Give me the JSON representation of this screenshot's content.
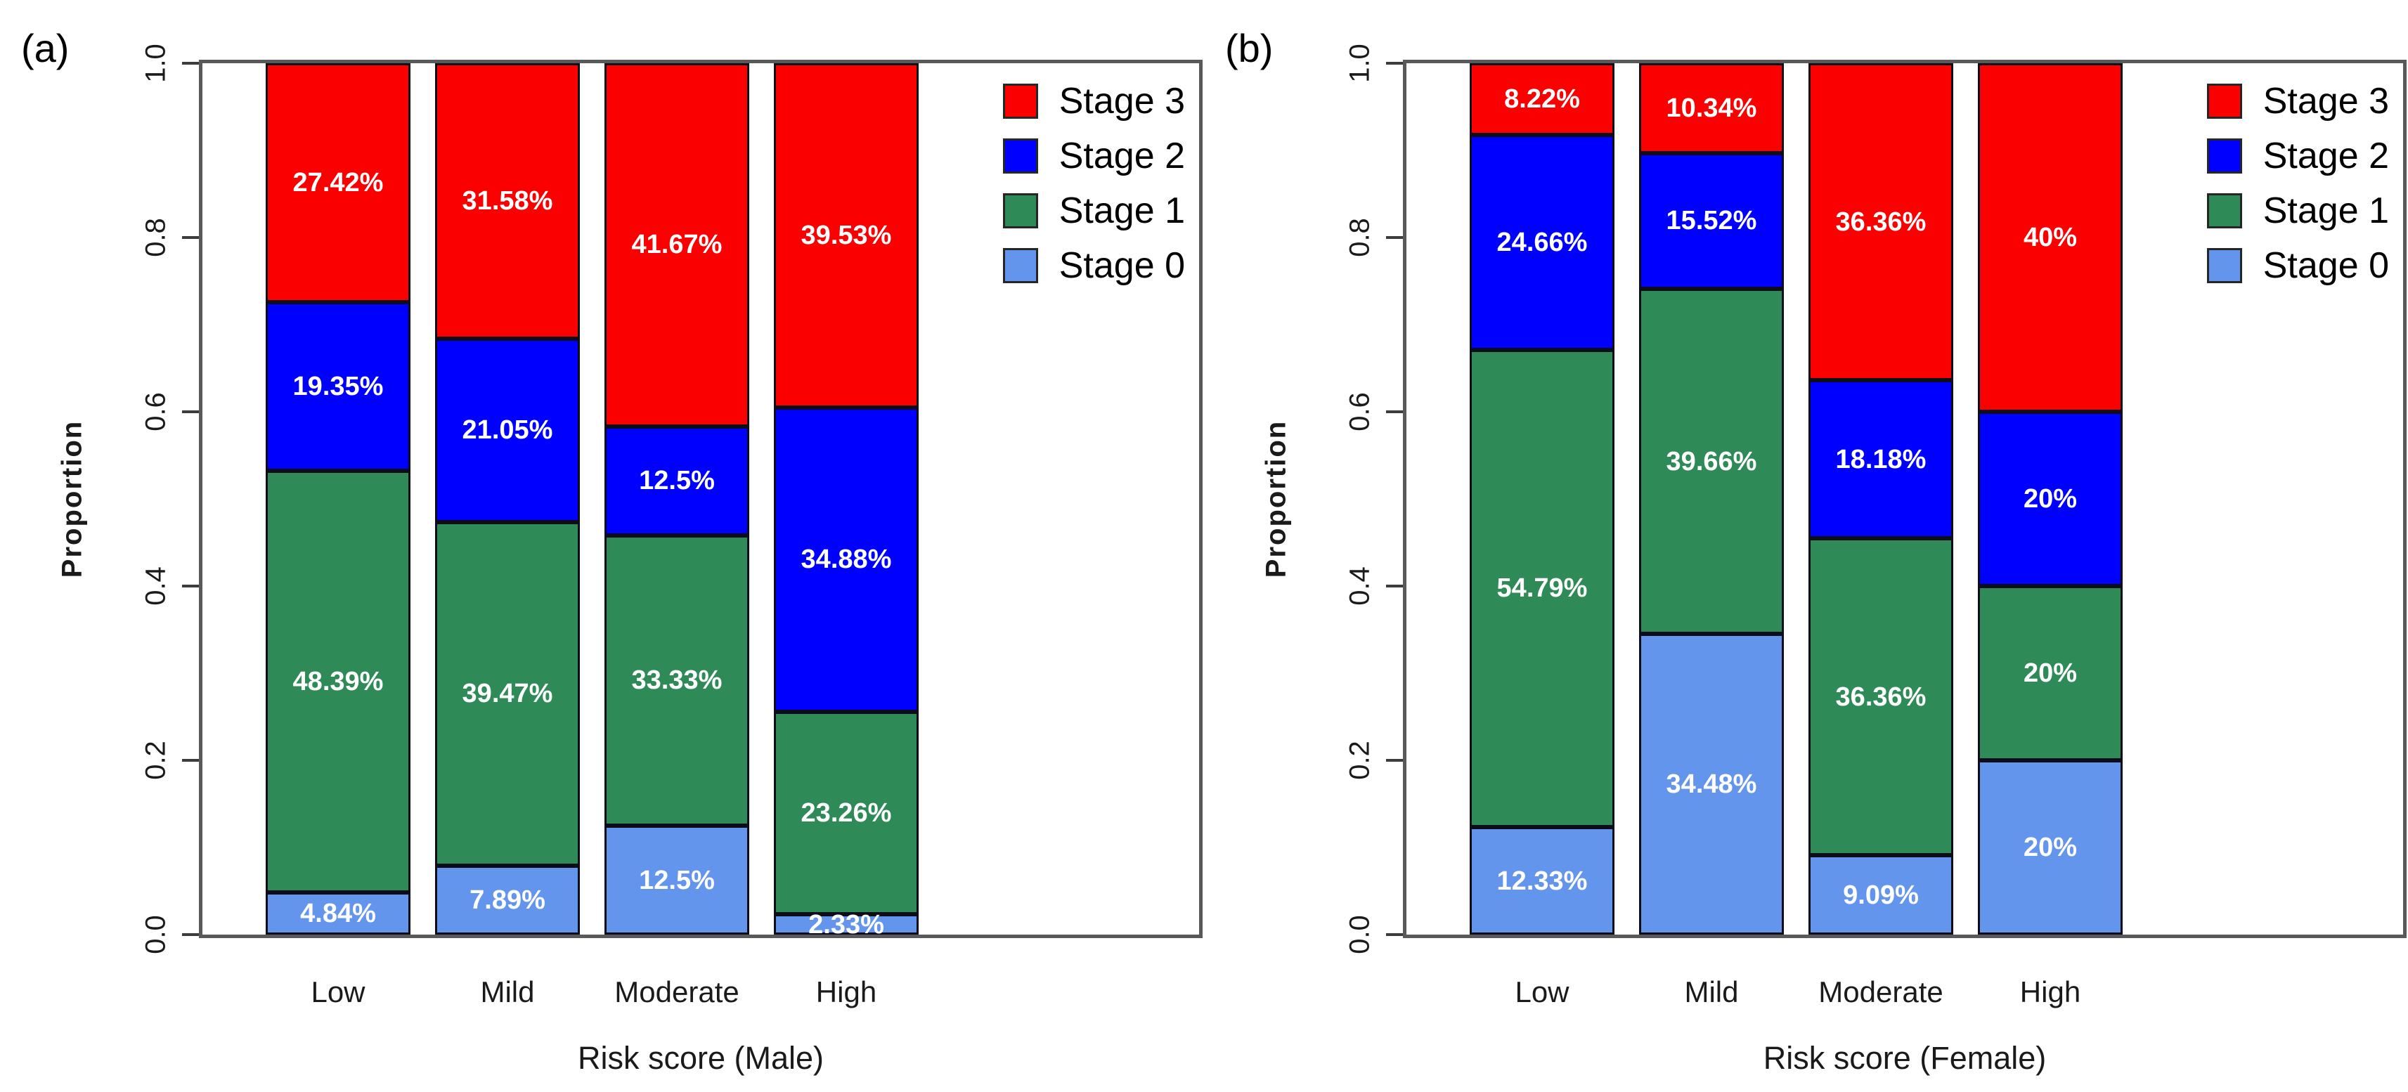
{
  "figure_background": "#ffffff",
  "colors": {
    "stage3_red": "#FB0000",
    "stage2_blue": "#0000FF",
    "stage1_green": "#2E8B57",
    "stage0_lightblue": "#6495ED",
    "plot_box_border": "#595959",
    "bar_border": "#0d0d1a",
    "segment_label_text": "#ffffff"
  },
  "chart_data": [
    {
      "type": "bar",
      "stacked": true,
      "panel_tag": "(a)",
      "xlabel": "Risk score (Male)",
      "ylabel": "Proportion",
      "categories": [
        "Low",
        "Mild",
        "Moderate",
        "High"
      ],
      "ylim": [
        0,
        1
      ],
      "ytick_labels": [
        "0.0",
        "0.2",
        "0.4",
        "0.6",
        "0.8",
        "1.0"
      ],
      "grid": false,
      "legend_position": "top-right-inside",
      "legend_order": [
        "Stage 3",
        "Stage 2",
        "Stage 1",
        "Stage 0"
      ],
      "series": [
        {
          "name": "Stage 0",
          "color": "#6495ED",
          "values": [
            4.84,
            7.89,
            12.5,
            2.33
          ],
          "labels": [
            "4.84%",
            "7.89%",
            "12.5%",
            "2.33%"
          ]
        },
        {
          "name": "Stage 1",
          "color": "#2E8B57",
          "values": [
            48.39,
            39.47,
            33.33,
            23.26
          ],
          "labels": [
            "48.39%",
            "39.47%",
            "33.33%",
            "23.26%"
          ]
        },
        {
          "name": "Stage 2",
          "color": "#0000FF",
          "values": [
            19.35,
            21.05,
            12.5,
            34.88
          ],
          "labels": [
            "19.35%",
            "21.05%",
            "12.5%",
            "34.88%"
          ]
        },
        {
          "name": "Stage 3",
          "color": "#FB0000",
          "values": [
            27.42,
            31.58,
            41.67,
            39.53
          ],
          "labels": [
            "27.42%",
            "31.58%",
            "41.67%",
            "39.53%"
          ]
        }
      ]
    },
    {
      "type": "bar",
      "stacked": true,
      "panel_tag": "(b)",
      "xlabel": "Risk score (Female)",
      "ylabel": "Proportion",
      "categories": [
        "Low",
        "Mild",
        "Moderate",
        "High"
      ],
      "ylim": [
        0,
        1
      ],
      "ytick_labels": [
        "0.0",
        "0.2",
        "0.4",
        "0.6",
        "0.8",
        "1.0"
      ],
      "grid": false,
      "legend_position": "top-right-inside",
      "legend_order": [
        "Stage 3",
        "Stage 2",
        "Stage 1",
        "Stage 0"
      ],
      "series": [
        {
          "name": "Stage 0",
          "color": "#6495ED",
          "values": [
            12.33,
            34.48,
            9.09,
            20
          ],
          "labels": [
            "12.33%",
            "34.48%",
            "9.09%",
            "20%"
          ]
        },
        {
          "name": "Stage 1",
          "color": "#2E8B57",
          "values": [
            54.79,
            39.66,
            36.36,
            20
          ],
          "labels": [
            "54.79%",
            "39.66%",
            "36.36%",
            "20%"
          ]
        },
        {
          "name": "Stage 2",
          "color": "#0000FF",
          "values": [
            24.66,
            15.52,
            18.18,
            20
          ],
          "labels": [
            "24.66%",
            "15.52%",
            "18.18%",
            "20%"
          ]
        },
        {
          "name": "Stage 3",
          "color": "#FB0000",
          "values": [
            8.22,
            10.34,
            36.36,
            40
          ],
          "labels": [
            "8.22%",
            "10.34%",
            "36.36%",
            "40%"
          ]
        }
      ]
    }
  ]
}
